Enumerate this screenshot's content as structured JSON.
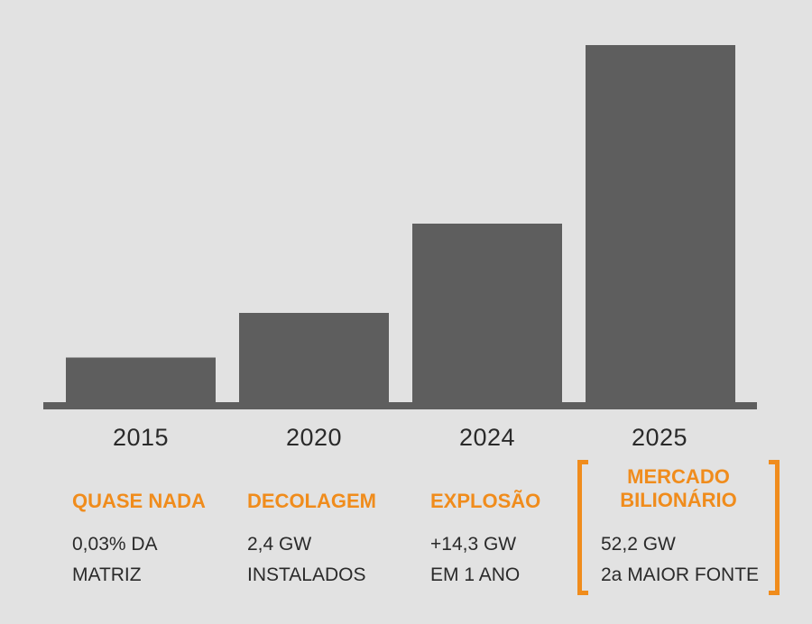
{
  "colors": {
    "bar": "#5e5e5e",
    "baseline": "#5e5e5e",
    "accent": "#f08c1c",
    "text": "#2a2a2a",
    "background": "#e2e2e2"
  },
  "chart_data": {
    "type": "bar",
    "categories": [
      "2015",
      "2020",
      "2024",
      "2025"
    ],
    "values": [
      12.5,
      25,
      50,
      100
    ],
    "ylim": [
      0,
      100
    ],
    "title": "",
    "xlabel": "",
    "ylabel": "",
    "grid": false
  },
  "annotations": [
    {
      "year": "2015",
      "headline": "QUASE NADA",
      "line1": "0,03% DA",
      "line2": "MATRIZ"
    },
    {
      "year": "2020",
      "headline": "DECOLAGEM",
      "line1": "2,4 GW",
      "line2": "INSTALADOS"
    },
    {
      "year": "2024",
      "headline": "EXPLOSÃO",
      "line1": "+14,3 GW",
      "line2": "EM 1 ANO"
    },
    {
      "year": "2025",
      "headline_line1": "MERCADO",
      "headline_line2": "BILIONÁRIO",
      "line1": "52,2 GW",
      "line2": "2a MAIOR FONTE"
    }
  ]
}
